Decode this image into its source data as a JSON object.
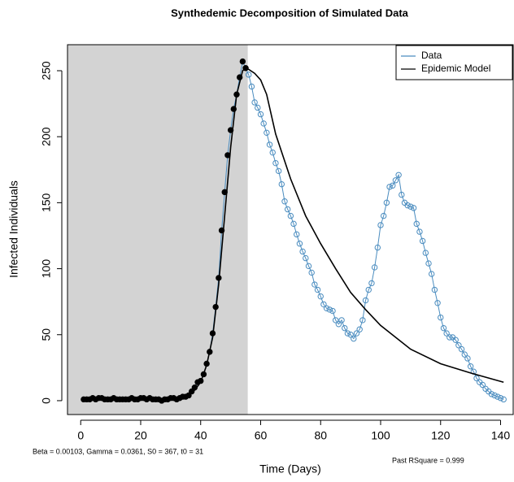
{
  "chart_data": {
    "type": "line",
    "title": "Synthedemic Decomposition of Simulated Data",
    "xlabel": "Time (Days)",
    "ylabel": "Infected Individuals",
    "annotation_left": "Beta =  0.00103, Gamma =  0.0361, S0 =  367, t0 =  31",
    "annotation_right": "Past RSquare =  0.999",
    "xlim": [
      -4.4,
      144.2
    ],
    "ylim": [
      -10.5,
      269.7
    ],
    "xticks": [
      0,
      20,
      40,
      60,
      80,
      100,
      120,
      140
    ],
    "yticks": [
      0,
      50,
      100,
      150,
      200,
      250
    ],
    "shaded_region": [
      -4.4,
      55.7
    ],
    "shade_color": "#d3d3d3",
    "shaded_marker_color": "#000000",
    "legend": "top-right",
    "series": [
      {
        "name": "Data",
        "color": "#4a8cbf",
        "marker": "open-circle",
        "x": [
          1,
          2,
          3,
          4,
          5,
          6,
          7,
          8,
          9,
          10,
          11,
          12,
          13,
          14,
          15,
          16,
          17,
          18,
          19,
          20,
          21,
          22,
          23,
          24,
          25,
          26,
          27,
          28,
          29,
          30,
          31,
          32,
          33,
          34,
          35,
          36,
          37,
          38,
          39,
          40,
          41,
          42,
          43,
          44,
          45,
          46,
          47,
          48,
          49,
          50,
          51,
          52,
          53,
          54,
          55,
          56,
          57,
          58,
          59,
          60,
          61,
          62,
          63,
          64,
          65,
          66,
          67,
          68,
          69,
          70,
          71,
          72,
          73,
          74,
          75,
          76,
          77,
          78,
          79,
          80,
          81,
          82,
          83,
          84,
          85,
          86,
          87,
          88,
          89,
          90,
          91,
          92,
          93,
          94,
          95,
          96,
          97,
          98,
          99,
          100,
          101,
          102,
          103,
          104,
          105,
          106,
          107,
          108,
          109,
          110,
          111,
          112,
          113,
          114,
          115,
          116,
          117,
          118,
          119,
          120,
          121,
          122,
          123,
          124,
          125,
          126,
          127,
          128,
          129,
          130,
          131,
          132,
          133,
          134,
          135,
          136,
          137,
          138,
          139,
          140,
          141
        ],
        "values": [
          1,
          1,
          1,
          2,
          1,
          2,
          2,
          1,
          1,
          1,
          2,
          1,
          1,
          1,
          1,
          1,
          2,
          1,
          1,
          2,
          2,
          1,
          2,
          1,
          1,
          1,
          0,
          1,
          1,
          2,
          2,
          1,
          2,
          3,
          3,
          4,
          7,
          10,
          14,
          15,
          20,
          28,
          37,
          51,
          71,
          93,
          129,
          158,
          186,
          205,
          221,
          232,
          245,
          257,
          252,
          247,
          238,
          226,
          222,
          217,
          210,
          203,
          194,
          188,
          180,
          174,
          164,
          151,
          145,
          140,
          134,
          126,
          119,
          113,
          108,
          102,
          97,
          88,
          84,
          79,
          73,
          70,
          69,
          68,
          61,
          58,
          61,
          55,
          51,
          50,
          47,
          51,
          54,
          61,
          76,
          84,
          89,
          101,
          116,
          133,
          140,
          150,
          162,
          163,
          167,
          171,
          156,
          150,
          148,
          147,
          146,
          134,
          128,
          121,
          112,
          104,
          96,
          84,
          74,
          63,
          55,
          51,
          48,
          48,
          46,
          42,
          39,
          35,
          32,
          26,
          22,
          17,
          14,
          12,
          9,
          7,
          5,
          4,
          3,
          2,
          1
        ]
      },
      {
        "name": "Epidemic Model",
        "color": "#000000",
        "marker": "none",
        "x": [
          1,
          10,
          20,
          30,
          35,
          36,
          38,
          40,
          42,
          44,
          46,
          48,
          50,
          52,
          54,
          55,
          56,
          58,
          60,
          62,
          65,
          70,
          75,
          80,
          85,
          90,
          95,
          100,
          110,
          120,
          130,
          141
        ],
        "values": [
          1,
          1,
          1,
          1,
          3,
          4,
          8,
          14,
          27,
          48,
          88,
          140,
          192,
          232,
          250,
          252,
          251,
          248,
          243,
          232,
          202,
          168,
          140,
          119,
          100,
          82,
          69,
          57,
          39,
          28,
          21,
          14
        ]
      }
    ]
  }
}
